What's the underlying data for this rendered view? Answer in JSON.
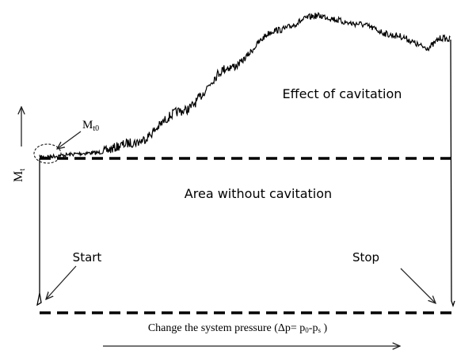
{
  "labels": {
    "mt0": {
      "base": "M",
      "sub": "t0"
    },
    "mt": {
      "base": "M",
      "sub": "t"
    },
    "effect": "Effect of cavitation",
    "area": "Area without cavitation",
    "start": "Start",
    "stop": "Stop",
    "x_label": [
      "Change the  system pressure (Δp= p",
      "0",
      "-p",
      "s",
      " )"
    ]
  }
}
